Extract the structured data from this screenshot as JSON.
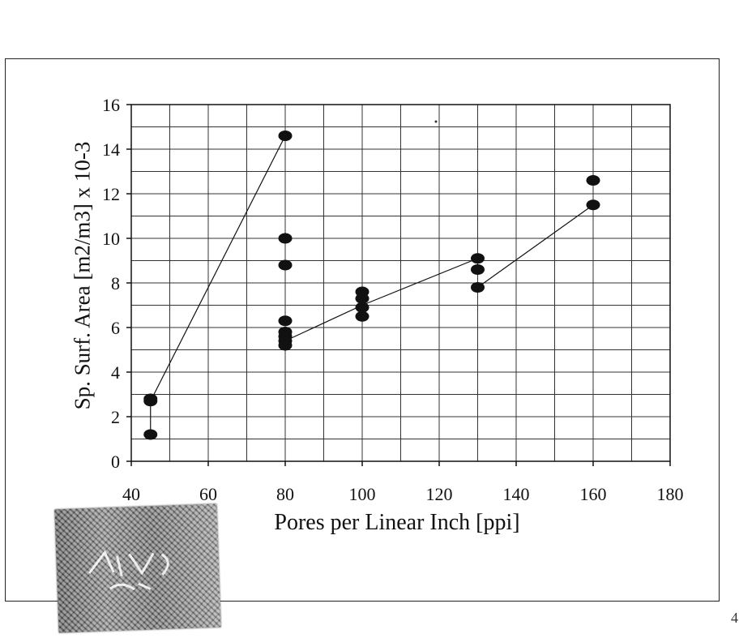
{
  "chart_data": {
    "type": "scatter",
    "title": "",
    "xlabel": "Pores per Linear Inch [ppi]",
    "ylabel": "Sp. Surf. Area [m2/m3] x 10-3",
    "xlim": [
      40,
      180
    ],
    "ylim": [
      0,
      16
    ],
    "x_ticks": [
      40,
      60,
      80,
      100,
      120,
      140,
      160,
      180
    ],
    "y_ticks": [
      0,
      2,
      4,
      6,
      8,
      10,
      12,
      14,
      16
    ],
    "grid": true,
    "legend": "none",
    "marker_color": "#111111",
    "points": [
      {
        "x": 45,
        "y": 2.8
      },
      {
        "x": 45,
        "y": 2.7
      },
      {
        "x": 45,
        "y": 1.2
      },
      {
        "x": 80,
        "y": 14.6
      },
      {
        "x": 80,
        "y": 10.0
      },
      {
        "x": 80,
        "y": 8.8
      },
      {
        "x": 80,
        "y": 6.3
      },
      {
        "x": 80,
        "y": 5.8
      },
      {
        "x": 80,
        "y": 5.6
      },
      {
        "x": 80,
        "y": 5.4
      },
      {
        "x": 80,
        "y": 5.2
      },
      {
        "x": 100,
        "y": 7.6
      },
      {
        "x": 100,
        "y": 7.3
      },
      {
        "x": 100,
        "y": 6.9
      },
      {
        "x": 100,
        "y": 6.5
      },
      {
        "x": 130,
        "y": 9.1
      },
      {
        "x": 130,
        "y": 8.6
      },
      {
        "x": 130,
        "y": 7.8
      },
      {
        "x": 160,
        "y": 12.6
      },
      {
        "x": 160,
        "y": 11.5
      }
    ],
    "lines": [
      [
        {
          "x": 45,
          "y": 1.2
        },
        {
          "x": 45,
          "y": 2.7
        }
      ],
      [
        {
          "x": 45,
          "y": 2.7
        },
        {
          "x": 80,
          "y": 14.6
        }
      ],
      [
        {
          "x": 80,
          "y": 5.4
        },
        {
          "x": 100,
          "y": 7.0
        }
      ],
      [
        {
          "x": 100,
          "y": 7.0
        },
        {
          "x": 130,
          "y": 9.1
        }
      ],
      [
        {
          "x": 130,
          "y": 7.8
        },
        {
          "x": 160,
          "y": 11.5
        }
      ]
    ]
  },
  "stamp": {
    "icon": "stamp-image"
  },
  "page_edge_mark": "4"
}
